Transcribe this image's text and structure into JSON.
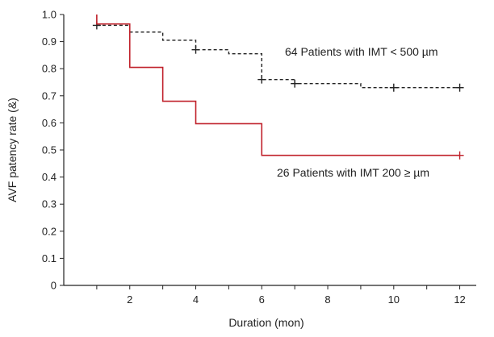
{
  "chart_data": {
    "type": "line",
    "title": "",
    "xlabel": "Duration (mon)",
    "ylabel": "AVF patency rate (&)",
    "xlim": [
      0,
      12.5
    ],
    "ylim": [
      0,
      1.0
    ],
    "x_ticks": [
      2,
      4,
      6,
      8,
      10,
      12
    ],
    "x_tick_labels": [
      "2",
      "4",
      "6",
      "8",
      "10",
      "12"
    ],
    "y_ticks": [
      0,
      0.1,
      0.2,
      0.3,
      0.4,
      0.5,
      0.6,
      0.7,
      0.8,
      0.9,
      1.0
    ],
    "y_tick_labels": [
      "0",
      "0.1",
      "0.2",
      "0.3",
      "0.4",
      "0.5",
      "0.6",
      "0.7",
      "0.8",
      "0.9",
      "1.0"
    ],
    "grid": false,
    "step": true,
    "series": [
      {
        "name": "64 Patients with IMT < 500 µm",
        "color": "#222222",
        "style": "dashed",
        "x": [
          1,
          2,
          3,
          4,
          5,
          6,
          7,
          8,
          9,
          10,
          12
        ],
        "y": [
          0.96,
          0.935,
          0.905,
          0.87,
          0.855,
          0.76,
          0.745,
          0.745,
          0.73,
          0.73,
          0.73
        ],
        "censored": [
          [
            1,
            0.96
          ],
          [
            4,
            0.87
          ],
          [
            6,
            0.76
          ],
          [
            7,
            0.745
          ],
          [
            10,
            0.73
          ],
          [
            12,
            0.73
          ]
        ]
      },
      {
        "name": "26 Patients with IMT 200 ≥ µm",
        "color": "#c0202a",
        "style": "solid",
        "x": [
          1,
          2,
          3,
          4,
          6,
          12
        ],
        "y": [
          0.965,
          0.805,
          0.68,
          0.597,
          0.48,
          0.48
        ],
        "start_y": 1.0,
        "censored": [
          [
            12,
            0.48
          ]
        ]
      }
    ],
    "annotations": [
      {
        "text": "64 Patients with IMT < 500 µm",
        "series": 0
      },
      {
        "text": "26 Patients with IMT 200 ≥ µm",
        "series": 1
      }
    ]
  }
}
